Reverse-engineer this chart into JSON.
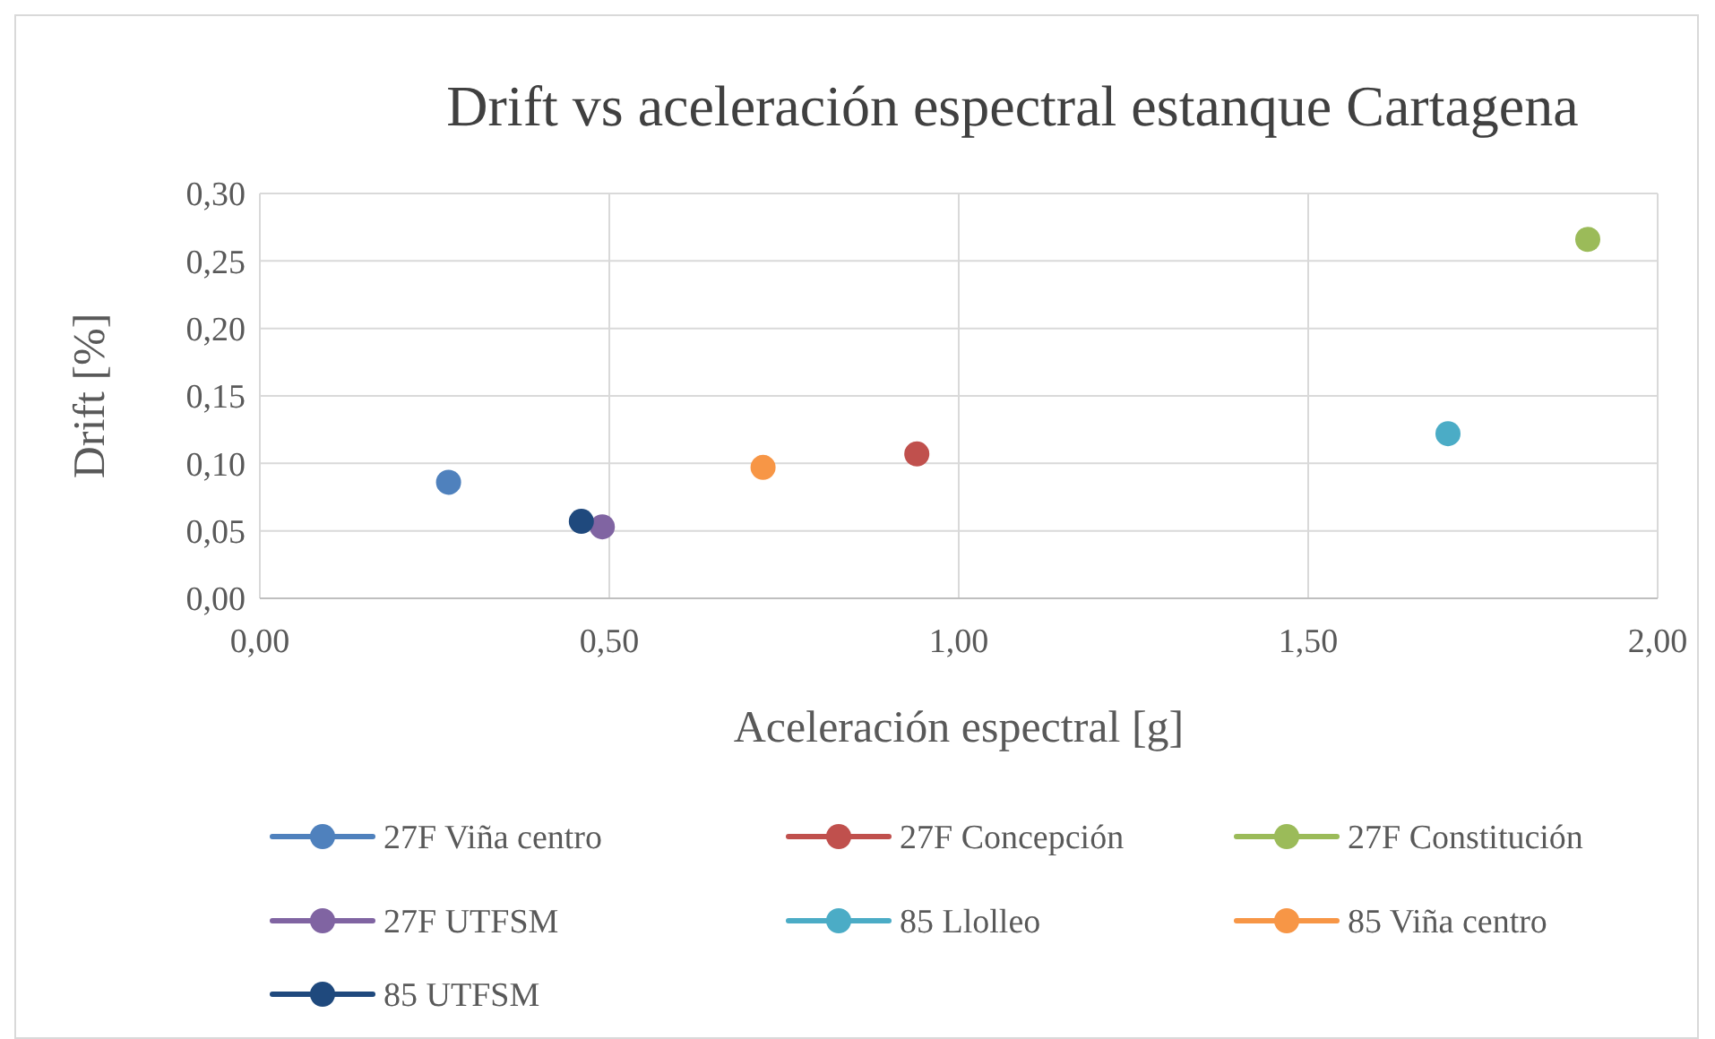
{
  "chart_data": {
    "type": "scatter",
    "title": "Drift vs aceleración espectral estanque Cartagena",
    "xlabel": "Aceleración espectral [g]",
    "ylabel": "Drift [%]",
    "xlim": [
      0,
      2
    ],
    "xticks": [
      {
        "value": 0,
        "label": "0,00"
      },
      {
        "value": 0.5,
        "label": "0,50"
      },
      {
        "value": 1,
        "label": "1,00"
      },
      {
        "value": 1.5,
        "label": "1,50"
      },
      {
        "value": 2,
        "label": "2,00"
      }
    ],
    "ylim": [
      0,
      0.3
    ],
    "yticks": [
      {
        "value": 0,
        "label": "0,00"
      },
      {
        "value": 0.05,
        "label": "0,05"
      },
      {
        "value": 0.1,
        "label": "0,10"
      },
      {
        "value": 0.15,
        "label": "0,15"
      },
      {
        "value": 0.2,
        "label": "0,20"
      },
      {
        "value": 0.25,
        "label": "0,25"
      },
      {
        "value": 0.3,
        "label": "0,30"
      }
    ],
    "grid": true,
    "legend": "bottom",
    "marker": "circle",
    "series": [
      {
        "name": "27F Viña centro",
        "color": "#4f81bd",
        "x": [
          0.27
        ],
        "values": [
          0.086
        ]
      },
      {
        "name": "27F Concepción",
        "color": "#c0504d",
        "x": [
          0.94
        ],
        "values": [
          0.107
        ]
      },
      {
        "name": "27F Constitución",
        "color": "#9bbb59",
        "x": [
          1.9
        ],
        "values": [
          0.266
        ]
      },
      {
        "name": "27F UTFSM",
        "color": "#8064a2",
        "x": [
          0.49
        ],
        "values": [
          0.053
        ]
      },
      {
        "name": "85 Llolleo",
        "color": "#4bacc6",
        "x": [
          1.7
        ],
        "values": [
          0.122
        ]
      },
      {
        "name": "85 Viña centro",
        "color": "#f79646",
        "x": [
          0.72
        ],
        "values": [
          0.097
        ]
      },
      {
        "name": "85 UTFSM",
        "color": "#1f497d",
        "x": [
          0.46
        ],
        "values": [
          0.057
        ]
      }
    ]
  }
}
